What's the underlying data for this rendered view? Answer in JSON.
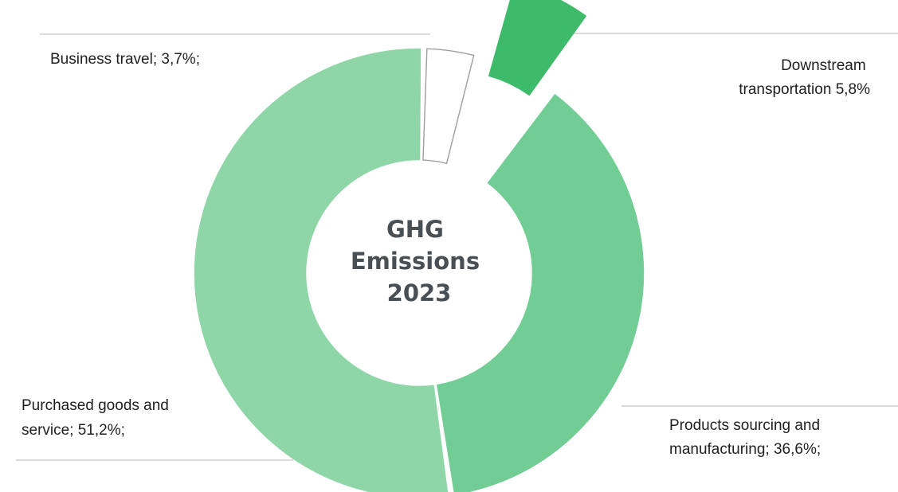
{
  "chart_data": {
    "type": "pie",
    "style": "donut-exploded",
    "center_title": [
      "GHG",
      "Emissions",
      "2023"
    ],
    "slices": [
      {
        "label_lines": [
          "Business travel; 3,7%;"
        ],
        "value": 3.7,
        "color": "#ffffff",
        "stroke": "#9aa09c"
      },
      {
        "label_lines": [
          "Downstream",
          "transportation 5,8%"
        ],
        "value": 5.8,
        "color": "#3dba6a",
        "stroke": "#3dba6a"
      },
      {
        "label_lines": [
          "Products sourcing and",
          "manufacturing; 36,6%;"
        ],
        "value": 36.6,
        "color": "#72cd95",
        "stroke": "#72cd95"
      },
      {
        "label_lines": [
          "Purchased goods and",
          "service; 51,2%;"
        ],
        "value": 51.2,
        "color": "#8ed6a8",
        "stroke": "#8ed6a8"
      }
    ]
  }
}
